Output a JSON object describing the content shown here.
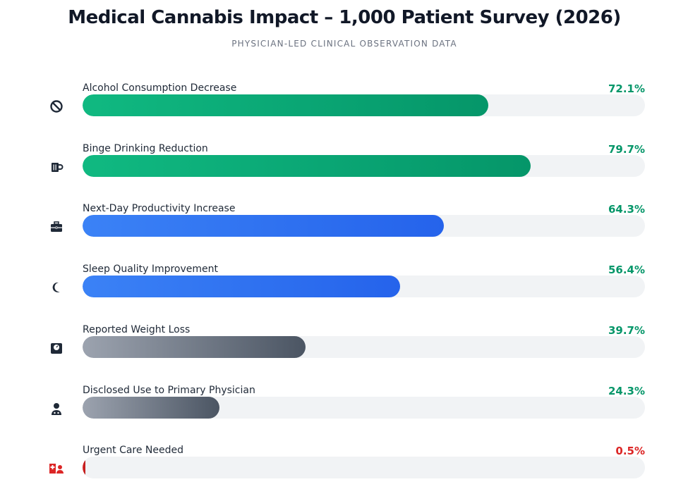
{
  "header": {
    "title": "Medical Cannabis Impact – 1,000 Patient Survey (2026)",
    "subtitle": "PHYSICIAN-LED CLINICAL OBSERVATION DATA"
  },
  "chart_data": {
    "type": "bar",
    "orientation": "horizontal",
    "title": "Medical Cannabis Impact – 1,000 Patient Survey (2026)",
    "subtitle": "PHYSICIAN-LED CLINICAL OBSERVATION DATA",
    "xlim": [
      0,
      100
    ],
    "unit": "%",
    "grid": false,
    "items": [
      {
        "label": "Alcohol Consumption Decrease",
        "value": 72.1,
        "display": "72.1%",
        "icon": "no-sign-icon",
        "colors": [
          "#10b981",
          "#059669"
        ],
        "text_color": "#059669"
      },
      {
        "label": "Binge Drinking Reduction",
        "value": 79.7,
        "display": "79.7%",
        "icon": "beer-mug-icon",
        "colors": [
          "#10b981",
          "#059669"
        ],
        "text_color": "#059669"
      },
      {
        "label": "Next-Day Productivity Increase",
        "value": 64.3,
        "display": "64.3%",
        "icon": "briefcase-icon",
        "colors": [
          "#3b82f6",
          "#2563eb"
        ],
        "text_color": "#059669"
      },
      {
        "label": "Sleep Quality Improvement",
        "value": 56.4,
        "display": "56.4%",
        "icon": "moon-icon",
        "colors": [
          "#3b82f6",
          "#2563eb"
        ],
        "text_color": "#059669"
      },
      {
        "label": "Reported Weight Loss",
        "value": 39.7,
        "display": "39.7%",
        "icon": "weight-scale-icon",
        "colors": [
          "#9ca3af",
          "#4b5563"
        ],
        "text_color": "#059669"
      },
      {
        "label": "Disclosed Use to Primary Physician",
        "value": 24.3,
        "display": "24.3%",
        "icon": "doctor-icon",
        "colors": [
          "#9ca3af",
          "#4b5563"
        ],
        "text_color": "#059669"
      },
      {
        "label": "Urgent Care Needed",
        "value": 0.5,
        "display": "0.5%",
        "icon": "hospital-user-icon",
        "colors": [
          "#dc2626",
          "#b91c1c"
        ],
        "text_color": "#dc2626"
      }
    ]
  }
}
